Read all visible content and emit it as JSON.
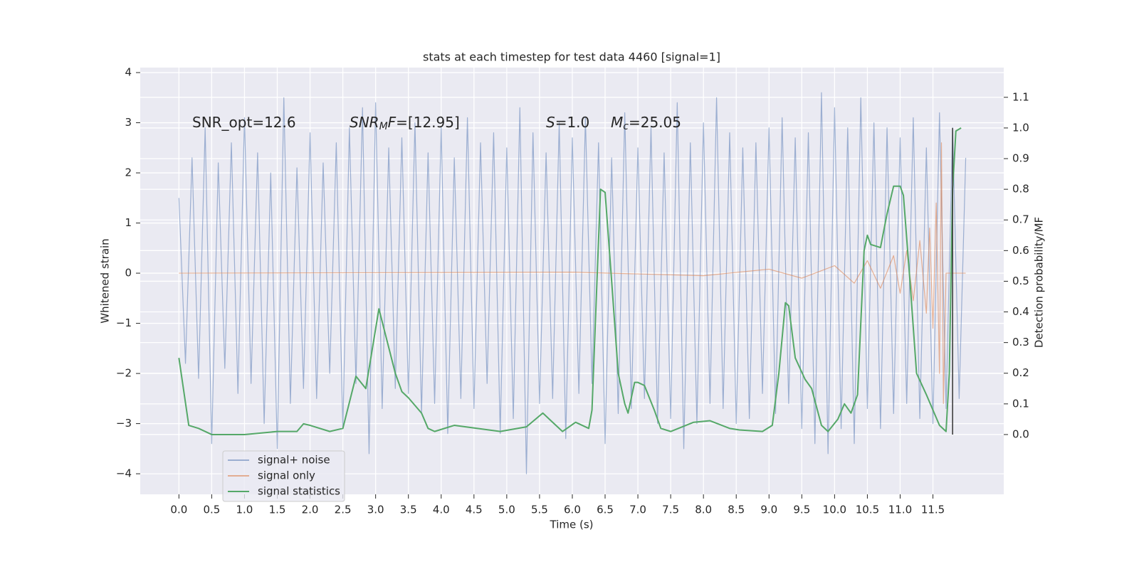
{
  "chart_data": {
    "type": "line",
    "title": "stats at each timestep for test data 4460 [signal=1]",
    "xlabel": "Time (s)",
    "ylabel": "Whitened strain",
    "y2label": "Detection probability/MF",
    "grid": true,
    "legend_position": "lower left",
    "xlim": [
      -0.59,
      12.58
    ],
    "ylim": [
      -4.41,
      4.1
    ],
    "y2lim": [
      -0.195,
      1.197
    ],
    "xticks": [
      {
        "value": 0,
        "label": "0.0"
      },
      {
        "value": 0.5,
        "label": "0.5"
      },
      {
        "value": 1,
        "label": "1.0"
      },
      {
        "value": 1.5,
        "label": "1.5"
      },
      {
        "value": 2,
        "label": "2.0"
      },
      {
        "value": 2.5,
        "label": "2.5"
      },
      {
        "value": 3,
        "label": "3.0"
      },
      {
        "value": 3.5,
        "label": "3.5"
      },
      {
        "value": 4,
        "label": "4.0"
      },
      {
        "value": 4.5,
        "label": "4.5"
      },
      {
        "value": 5,
        "label": "5.0"
      },
      {
        "value": 5.5,
        "label": "5.5"
      },
      {
        "value": 6,
        "label": "6.0"
      },
      {
        "value": 6.5,
        "label": "6.5"
      },
      {
        "value": 7,
        "label": "7.0"
      },
      {
        "value": 7.5,
        "label": "7.5"
      },
      {
        "value": 8,
        "label": "8.0"
      },
      {
        "value": 8.5,
        "label": "8.5"
      },
      {
        "value": 9,
        "label": "9.0"
      },
      {
        "value": 9.5,
        "label": "9.5"
      },
      {
        "value": 10,
        "label": "10.0"
      },
      {
        "value": 10.5,
        "label": "10.5"
      },
      {
        "value": 11,
        "label": "11.0"
      },
      {
        "value": 11.5,
        "label": "11.5"
      }
    ],
    "yticks": [
      {
        "value": -4,
        "label": "−4"
      },
      {
        "value": -3,
        "label": "−3"
      },
      {
        "value": -2,
        "label": "−2"
      },
      {
        "value": -1,
        "label": "−1"
      },
      0,
      1,
      2,
      3,
      4
    ],
    "y2ticks": [
      {
        "value": 0,
        "label": "0.0"
      },
      {
        "value": 0.1,
        "label": "0.1"
      },
      {
        "value": 0.2,
        "label": "0.2"
      },
      {
        "value": 0.3,
        "label": "0.3"
      },
      {
        "value": 0.4,
        "label": "0.4"
      },
      {
        "value": 0.5,
        "label": "0.5"
      },
      {
        "value": 0.6,
        "label": "0.6"
      },
      {
        "value": 0.7,
        "label": "0.7"
      },
      {
        "value": 0.8,
        "label": "0.8"
      },
      {
        "value": 0.9,
        "label": "0.9"
      },
      {
        "value": 1.0,
        "label": "1.0"
      },
      {
        "value": 1.1,
        "label": "1.1"
      }
    ],
    "annotations": [
      [
        {
          "text": "SNR_opt=12.6",
          "style": "normal"
        }
      ],
      [
        {
          "text": "SNR",
          "style": "italic"
        },
        {
          "text": "M",
          "style": "italic-sub"
        },
        {
          "text": "F",
          "style": "italic"
        },
        {
          "text": "=[12.95]",
          "style": "normal"
        }
      ],
      [
        {
          "text": "S",
          "style": "italic"
        },
        {
          "text": "=1.0",
          "style": "normal"
        }
      ],
      [
        {
          "text": "M",
          "style": "italic"
        },
        {
          "text": "c",
          "style": "italic-sub"
        },
        {
          "text": "=25.05",
          "style": "normal"
        }
      ]
    ],
    "vline": {
      "x": 11.8,
      "y2": [
        0,
        1.0
      ],
      "color": "#333333"
    },
    "series": [
      {
        "name": "signal+ noise",
        "color": "#4c72b0",
        "opacity": 0.5,
        "axis": "y",
        "x": [
          0,
          0.1,
          0.2,
          0.3,
          0.4,
          0.5,
          0.6,
          0.7,
          0.8,
          0.9,
          1,
          1.1,
          1.2,
          1.3,
          1.4,
          1.5,
          1.6,
          1.7,
          1.8,
          1.9,
          2,
          2.1,
          2.2,
          2.3,
          2.4,
          2.5,
          2.6,
          2.7,
          2.8,
          2.9,
          3,
          3.1,
          3.2,
          3.3,
          3.4,
          3.5,
          3.6,
          3.7,
          3.8,
          3.9,
          4,
          4.1,
          4.2,
          4.3,
          4.4,
          4.5,
          4.6,
          4.7,
          4.8,
          4.9,
          5,
          5.1,
          5.2,
          5.3,
          5.4,
          5.5,
          5.6,
          5.7,
          5.8,
          5.9,
          6,
          6.1,
          6.2,
          6.3,
          6.4,
          6.5,
          6.6,
          6.7,
          6.8,
          6.9,
          7,
          7.1,
          7.2,
          7.3,
          7.4,
          7.5,
          7.6,
          7.7,
          7.8,
          7.9,
          8,
          8.1,
          8.2,
          8.3,
          8.4,
          8.5,
          8.6,
          8.7,
          8.8,
          8.9,
          9,
          9.1,
          9.2,
          9.3,
          9.4,
          9.5,
          9.6,
          9.7,
          9.8,
          9.9,
          10,
          10.1,
          10.2,
          10.3,
          10.4,
          10.5,
          10.6,
          10.7,
          10.8,
          10.9,
          11,
          11.1,
          11.2,
          11.3,
          11.4,
          11.5,
          11.6,
          11.7,
          11.8,
          11.9,
          12
        ],
        "values": [
          1.5,
          -1.8,
          2.3,
          -2.1,
          2.9,
          -3.4,
          2.2,
          -1.9,
          2.6,
          -2.4,
          3.1,
          -2.2,
          2.4,
          -3.0,
          2.0,
          -3.5,
          3.5,
          -2.6,
          2.1,
          -2.3,
          2.8,
          -2.5,
          2.2,
          -2.0,
          2.6,
          -3.1,
          2.9,
          -2.2,
          3.3,
          -3.6,
          3.4,
          -2.7,
          2.5,
          -2.3,
          2.7,
          -2.4,
          3.0,
          -2.8,
          2.4,
          -2.6,
          2.9,
          -3.2,
          2.3,
          -2.5,
          3.1,
          -2.7,
          2.6,
          -2.2,
          2.8,
          -3.2,
          2.5,
          -2.9,
          3.3,
          -4.0,
          2.8,
          -2.6,
          2.4,
          -2.5,
          3.0,
          -3.3,
          2.7,
          -2.4,
          3.1,
          -2.2,
          2.6,
          -3.4,
          2.3,
          -2.8,
          3.2,
          -2.7,
          2.5,
          -2.5,
          2.9,
          -3.0,
          2.4,
          -2.9,
          3.4,
          -3.5,
          2.6,
          -3.0,
          3.0,
          -2.6,
          3.5,
          -2.7,
          2.8,
          -3.0,
          2.5,
          -2.9,
          2.6,
          -2.4,
          2.9,
          -2.8,
          3.1,
          -2.6,
          2.7,
          -3.1,
          2.8,
          -3.4,
          3.6,
          -3.6,
          3.3,
          -3.1,
          2.9,
          -3.4,
          3.5,
          -2.7,
          3.0,
          -3.1,
          2.9,
          -2.8,
          2.7,
          -2.6,
          3.1,
          -2.9,
          2.5,
          -3.0,
          3.2,
          -2.7,
          2.9,
          -2.5,
          2.3
        ]
      },
      {
        "name": "signal only",
        "color": "#dd8452",
        "opacity": 0.6,
        "axis": "y",
        "x": [
          0,
          6.0,
          8.0,
          9.0,
          9.5,
          10.0,
          10.3,
          10.5,
          10.7,
          10.9,
          11.0,
          11.1,
          11.2,
          11.3,
          11.4,
          11.45,
          11.5,
          11.55,
          11.6,
          11.63,
          11.66,
          11.7,
          12.0
        ],
        "values": [
          0,
          0.02,
          -0.05,
          0.08,
          -0.1,
          0.15,
          -0.2,
          0.25,
          -0.3,
          0.35,
          -0.4,
          0.45,
          -0.55,
          0.65,
          -0.8,
          0.9,
          -1.1,
          1.4,
          -2.0,
          2.6,
          -2.6,
          0,
          0
        ]
      },
      {
        "name": "signal statistics",
        "color": "#55a868",
        "opacity": 1,
        "axis": "y2",
        "x": [
          0,
          0.15,
          0.3,
          0.5,
          1.0,
          1.5,
          1.8,
          1.9,
          2.0,
          2.3,
          2.5,
          2.7,
          2.85,
          3.05,
          3.3,
          3.4,
          3.5,
          3.7,
          3.8,
          3.9,
          4.2,
          4.9,
          5.3,
          5.55,
          5.7,
          5.85,
          6.05,
          6.25,
          6.3,
          6.43,
          6.5,
          6.6,
          6.7,
          6.8,
          6.85,
          6.95,
          7.0,
          7.1,
          7.25,
          7.35,
          7.5,
          7.85,
          8.1,
          8.4,
          8.55,
          8.9,
          9.05,
          9.15,
          9.25,
          9.3,
          9.4,
          9.55,
          9.65,
          9.8,
          9.9,
          10.05,
          10.15,
          10.25,
          10.35,
          10.45,
          10.5,
          10.55,
          10.7,
          10.8,
          10.9,
          11.0,
          11.05,
          11.15,
          11.25,
          11.4,
          11.5,
          11.6,
          11.7,
          11.75,
          11.8,
          11.85,
          11.93
        ],
        "values": [
          0.25,
          0.03,
          0.02,
          0.0,
          0.0,
          0.01,
          0.01,
          0.035,
          0.03,
          0.01,
          0.02,
          0.19,
          0.15,
          0.41,
          0.2,
          0.14,
          0.12,
          0.07,
          0.02,
          0.01,
          0.03,
          0.01,
          0.025,
          0.07,
          0.04,
          0.01,
          0.04,
          0.02,
          0.08,
          0.8,
          0.79,
          0.5,
          0.2,
          0.1,
          0.07,
          0.17,
          0.17,
          0.16,
          0.08,
          0.02,
          0.01,
          0.04,
          0.045,
          0.02,
          0.015,
          0.01,
          0.03,
          0.2,
          0.43,
          0.42,
          0.25,
          0.18,
          0.15,
          0.03,
          0.01,
          0.05,
          0.1,
          0.07,
          0.13,
          0.6,
          0.65,
          0.62,
          0.61,
          0.72,
          0.81,
          0.81,
          0.78,
          0.5,
          0.2,
          0.13,
          0.08,
          0.03,
          0.01,
          0.2,
          0.8,
          0.99,
          1.0
        ]
      }
    ]
  }
}
